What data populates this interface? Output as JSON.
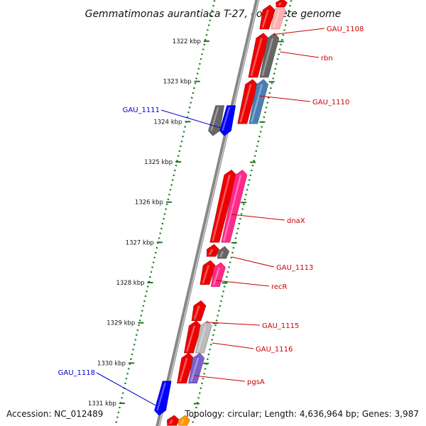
{
  "title": "Gemmatimonas aurantiaca T-27, complete genome",
  "footer": {
    "accession": "Accession: NC_012489",
    "topology": "Topology: circular; Length: 4,636,964 bp; Genes: 3,987"
  },
  "colors": {
    "backbone": "#888888",
    "tick": "#1a7a1a",
    "forward_label": "#cc0000",
    "reverse_label": "#0000cc",
    "red": "#ee0000",
    "grey": "#666666",
    "light_grey": "#bbbbbb",
    "steelblue": "#4a7fb5",
    "pink": "#ff2a8a",
    "blue": "#0000ff",
    "purple": "#7a60cc",
    "orange": "#ff9900",
    "light_red": "#ffb0b0"
  },
  "scale": {
    "unit": "kbp",
    "ticks": [
      {
        "label": "1322 kbp",
        "kbp": 1322
      },
      {
        "label": "1323 kbp",
        "kbp": 1323
      },
      {
        "label": "1324 kbp",
        "kbp": 1324
      },
      {
        "label": "1325 kbp",
        "kbp": 1325
      },
      {
        "label": "1326 kbp",
        "kbp": 1326
      },
      {
        "label": "1327 kbp",
        "kbp": 1327
      },
      {
        "label": "1328 kbp",
        "kbp": 1328
      },
      {
        "label": "1329 kbp",
        "kbp": 1329
      },
      {
        "label": "1330 kbp",
        "kbp": 1330
      },
      {
        "label": "1331 kbp",
        "kbp": 1331
      }
    ]
  },
  "features": [
    {
      "track": "CDS",
      "strand": "+",
      "start": 1321.1,
      "end": 1321.7,
      "color": "light_red"
    },
    {
      "track": "CDS",
      "strand": "+",
      "start": 1320.95,
      "end": 1321.15,
      "color": "red"
    },
    {
      "track": "gene",
      "strand": "+",
      "start": 1321.1,
      "end": 1321.7,
      "color": "red"
    },
    {
      "track": "gene",
      "strand": "+",
      "start": 1321.8,
      "end": 1322.9,
      "color": "red",
      "label": "GAU_1108"
    },
    {
      "track": "CDS",
      "strand": "+",
      "start": 1321.8,
      "end": 1322.9,
      "color": "grey",
      "label": "rbn"
    },
    {
      "track": "gene",
      "strand": "+",
      "start": 1322.95,
      "end": 1324.05,
      "color": "red",
      "label": "GAU_1110"
    },
    {
      "track": "CDS",
      "strand": "+",
      "start": 1322.95,
      "end": 1324.05,
      "color": "steelblue"
    },
    {
      "track": "CDS",
      "strand": "-",
      "start": 1323.6,
      "end": 1324.35,
      "color": "blue",
      "label": "GAU_1111"
    },
    {
      "track": "gene",
      "strand": "-",
      "start": 1323.6,
      "end": 1324.35,
      "color": "grey"
    },
    {
      "track": "gene",
      "strand": "+",
      "start": 1325.2,
      "end": 1327.0,
      "color": "red",
      "label": "dnaX"
    },
    {
      "track": "CDS",
      "strand": "+",
      "start": 1325.2,
      "end": 1327.0,
      "color": "pink"
    },
    {
      "track": "gene",
      "strand": "+",
      "start": 1327.05,
      "end": 1327.35,
      "color": "red"
    },
    {
      "track": "CDS",
      "strand": "+",
      "start": 1327.1,
      "end": 1327.4,
      "color": "grey",
      "label": "GAU_1113"
    },
    {
      "track": "gene",
      "strand": "+",
      "start": 1327.45,
      "end": 1328.05,
      "color": "red",
      "label": "recR"
    },
    {
      "track": "CDS",
      "strand": "+",
      "start": 1327.5,
      "end": 1328.1,
      "color": "pink"
    },
    {
      "track": "gene",
      "strand": "+",
      "start": 1328.45,
      "end": 1328.95,
      "color": "red"
    },
    {
      "track": "gene",
      "strand": "+",
      "start": 1328.95,
      "end": 1329.75,
      "color": "red",
      "label": "GAU_1115"
    },
    {
      "track": "CDS",
      "strand": "+",
      "start": 1328.95,
      "end": 1329.75,
      "color": "light_grey",
      "label": "GAU_1116"
    },
    {
      "track": "gene",
      "strand": "+",
      "start": 1329.75,
      "end": 1330.5,
      "color": "red",
      "label": "pgsA"
    },
    {
      "track": "CDS",
      "strand": "+",
      "start": 1329.75,
      "end": 1330.5,
      "color": "purple"
    },
    {
      "track": "CDS",
      "strand": "-",
      "start": 1330.45,
      "end": 1331.3,
      "color": "blue",
      "label": "GAU_1118"
    },
    {
      "track": "gene",
      "strand": "+",
      "start": 1331.3,
      "end": 1331.55,
      "color": "red"
    },
    {
      "track": "CDS",
      "strand": "+",
      "start": 1331.3,
      "end": 1331.55,
      "color": "orange"
    }
  ]
}
